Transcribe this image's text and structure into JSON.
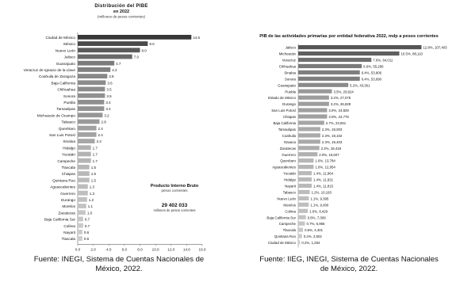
{
  "chart_data": [
    {
      "type": "bar",
      "orientation": "horizontal",
      "title": "Distribución del PIBE",
      "subtitle": "en 2022",
      "title_note": "(millones de pesos corrientes)",
      "annotation_title": "Producto Interno Bruto",
      "annotation_subtitle": "pesos corrientes",
      "annotation_value": "29 402 033",
      "annotation_note": "millones de pesos corrientes",
      "categories": [
        "Ciudad de México",
        "México",
        "Nuevo León",
        "Jalisco",
        "Guanajuato",
        "Veracruz de Ignacio de la Llave",
        "Coahuila de Zaragoza",
        "Baja California",
        "Chihuahua",
        "Sonora",
        "Puebla",
        "Tamaulipas",
        "Michoacán de Ocampo",
        "Tabasco",
        "Querétaro",
        "San Luis Potosí",
        "Sinaloa",
        "Hidalgo",
        "Yucatán",
        "Campeche",
        "Tlaxcala",
        "Chiapas",
        "Quintana Roo",
        "Aguascalientes",
        "Guerrero",
        "Durango",
        "Morelos",
        "Zacatecas",
        "Baja California Sur",
        "Colima",
        "Nayarit",
        "Tlaxcala"
      ],
      "values": [
        14.6,
        9.0,
        8.0,
        7.0,
        4.7,
        4.2,
        3.8,
        3.6,
        3.5,
        3.5,
        3.4,
        3.4,
        3.2,
        2.8,
        2.4,
        2.4,
        2.2,
        1.7,
        1.7,
        1.7,
        1.5,
        1.5,
        1.5,
        1.3,
        1.3,
        1.2,
        1.1,
        1.0,
        0.7,
        0.7,
        0.6,
        0.6
      ],
      "value_labels": [
        "14.6",
        "9.0",
        "8.0",
        "7.0",
        "4.7",
        "4.2",
        "3.8",
        "3.6",
        "3.5",
        "3.5",
        "3.4",
        "3.4",
        "3.2",
        "2.8",
        "2.4",
        "2.4",
        "2.2",
        "1.7",
        "1.7",
        "1.7",
        "1.5",
        "1.5",
        "1.5",
        "1.3",
        "1.3",
        "1.2",
        "1.1",
        "1.0",
        "0.7",
        "0.7",
        "0.6",
        "0.6"
      ],
      "bar_colors": [
        "#383838",
        "#4a4a4a",
        "#5a5a5a",
        "#6a6a6a",
        "#7b7b7b",
        "#808080",
        "#888888",
        "#8c8c8c",
        "#8c8c8c",
        "#909090",
        "#909090",
        "#939393",
        "#969696",
        "#9a9a9a",
        "#a0a0a0",
        "#a3a3a3",
        "#a7a7a7",
        "#b1b1b1",
        "#b3b3b3",
        "#b5b5b5",
        "#b7b7b7",
        "#b9b9b9",
        "#bbbbbb",
        "#bdbdbd",
        "#bfbfbf",
        "#c1c1c1",
        "#c3c3c3",
        "#c5c5c5",
        "#c7c7c7",
        "#c9c9c9",
        "#cbcbcb",
        "#cdcdcd"
      ],
      "x_ticks": [
        "0.0",
        "2.0",
        "4.0",
        "6.0",
        "8.0",
        "10.0",
        "12.0",
        "14.0",
        "16.0"
      ],
      "xlim": [
        0,
        16
      ]
    },
    {
      "type": "bar",
      "orientation": "horizontal",
      "title": "PIB de las actividades primarias por entidad federativa 2022, mdp a pesos corrientes",
      "categories": [
        "Jalisco",
        "Michoacán",
        "Veracruz",
        "Chihuahua",
        "Sinaloa",
        "Sonora",
        "Guanajuato",
        "Puebla",
        "Estado de México",
        "Durango",
        "San Luis Potosí",
        "Chiapas",
        "Baja California",
        "Tamaulipas",
        "Coahuila",
        "Oaxaca",
        "Zacatecas",
        "Guerrero",
        "Querétaro",
        "Aguascalientes",
        "Yucatán",
        "Hidalgo",
        "Nayarit",
        "Tabasco",
        "Nuevo León",
        "Morelos",
        "Colima",
        "Baja California Sur",
        "Campeche",
        "Tlaxcala",
        "Quintana Roo",
        "Ciudad de México"
      ],
      "values": [
        12.8,
        10.5,
        7.6,
        6.6,
        6.4,
        6.4,
        5.2,
        3.5,
        3.2,
        3.2,
        3.0,
        3.0,
        2.7,
        2.3,
        2.3,
        2.3,
        2.2,
        2.0,
        1.6,
        1.6,
        1.4,
        1.4,
        1.4,
        1.2,
        1.1,
        1.1,
        1.0,
        0.8,
        0.7,
        0.5,
        0.4,
        0.2
      ],
      "value_labels": [
        "12.8%, 107,403",
        "10.5%, 88,110",
        "7.6%, 64,011",
        "6.6%, 55,286",
        "6.4%, 53,806",
        "6.4%, 53,690",
        "5.2%, 43,361",
        "3.5%, 29,624",
        "3.2%, 27,075",
        "3.2%, 26,828",
        "3.0%, 24,829",
        "3.0%, 24,775",
        "2.7%, 23,061",
        "2.3%, 19,003",
        "2.3%, 19,102",
        "2.3%, 19,403",
        "2.2%, 18,418",
        "2.0%, 16,507",
        "1.6%, 13,784",
        "1.6%, 12,954",
        "1.4%, 11,964",
        "1.4%, 11,921",
        "1.4%, 11,815",
        "1.2%, 10,193",
        "1.1%, 9,395",
        "1.1%, 9,000",
        "1.0%, 8,429",
        "0.8%, 7,009",
        "0.7%, 5,965",
        "0.5%, 4,401",
        "0.4%, 3,502",
        "0.2%, 1,284"
      ],
      "bar_colors": [
        "#555555",
        "#5f5f5f",
        "#6f6f6f",
        "#7a7a7a",
        "#7f7f7f",
        "#7f7f7f",
        "#8a8a8a",
        "#9a9a9a",
        "#9d9d9d",
        "#9d9d9d",
        "#a0a0a0",
        "#a0a0a0",
        "#a5a5a5",
        "#aaaaaa",
        "#aaaaaa",
        "#aaaaaa",
        "#adadad",
        "#b0b0b0",
        "#b6b6b6",
        "#b6b6b6",
        "#b9b9b9",
        "#b9b9b9",
        "#b9b9b9",
        "#bcbcbc",
        "#bebebe",
        "#bebebe",
        "#c0c0c0",
        "#c3c3c3",
        "#c5c5c5",
        "#c8c8c8",
        "#cacaca",
        "#cdcdcd"
      ],
      "xlim": [
        0,
        14
      ]
    }
  ],
  "captions": {
    "left": [
      "Fuente: INEGI, Sistema de Cuentas Nacionales de",
      "México, 2022."
    ],
    "right": [
      "Fuente: IIEG, INEGI, Sistema de Cuentas Nacionales",
      "de México, 2022."
    ]
  }
}
